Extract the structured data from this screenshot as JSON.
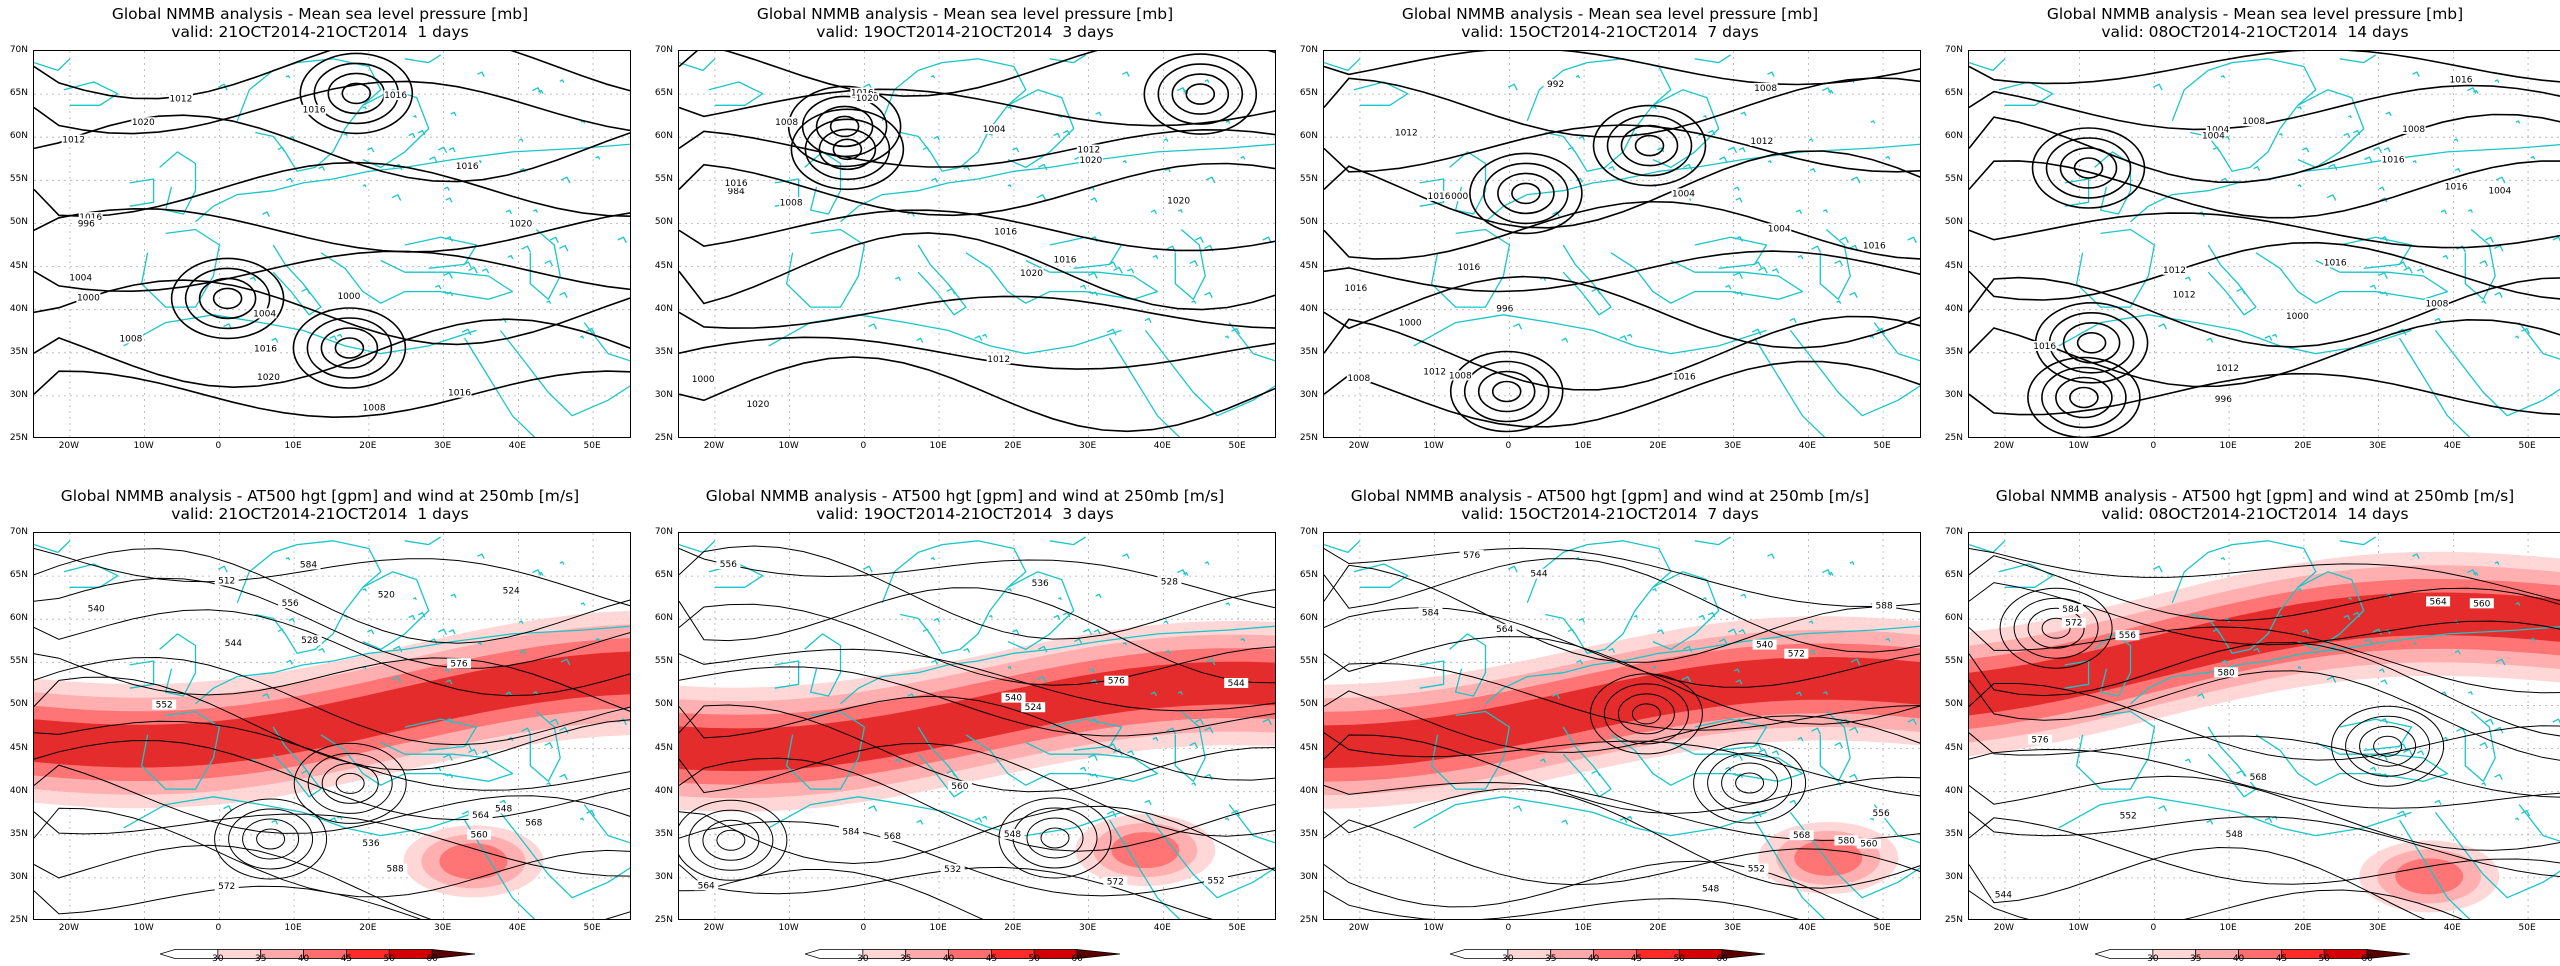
{
  "panels": [
    {
      "title": "Global NMMB analysis - Mean sea level pressure [mb]",
      "valid": "valid: 21OCT2014-21OCT2014  1 days",
      "kind": "mslp"
    },
    {
      "title": "Global NMMB analysis - Mean sea level pressure [mb]",
      "valid": "valid: 19OCT2014-21OCT2014  3 days",
      "kind": "mslp"
    },
    {
      "title": "Global NMMB analysis - Mean sea level pressure [mb]",
      "valid": "valid: 15OCT2014-21OCT2014  7 days",
      "kind": "mslp"
    },
    {
      "title": "Global NMMB analysis - Mean sea level pressure [mb]",
      "valid": "valid: 08OCT2014-21OCT2014  14 days",
      "kind": "mslp"
    },
    {
      "title": "Global NMMB analysis - AT500 hgt [gpm] and wind at 250mb [m/s]",
      "valid": "valid: 21OCT2014-21OCT2014  1 days",
      "kind": "z500"
    },
    {
      "title": "Global NMMB analysis - AT500 hgt [gpm] and wind at 250mb [m/s]",
      "valid": "valid: 19OCT2014-21OCT2014  3 days",
      "kind": "z500"
    },
    {
      "title": "Global NMMB analysis - AT500 hgt [gpm] and wind at 250mb [m/s]",
      "valid": "valid: 15OCT2014-21OCT2014  7 days",
      "kind": "z500"
    },
    {
      "title": "Global NMMB analysis - AT500 hgt [gpm] and wind at 250mb [m/s]",
      "valid": "valid: 08OCT2014-21OCT2014  14 days",
      "kind": "z500"
    }
  ],
  "axes": {
    "lat_labels": [
      "70N",
      "65N",
      "60N",
      "55N",
      "50N",
      "45N",
      "40N",
      "35N",
      "30N",
      "25N"
    ],
    "lon_labels": [
      "20W",
      "10W",
      "0",
      "10E",
      "20E",
      "30E",
      "40E",
      "50E"
    ]
  },
  "colorbar": {
    "labels": [
      "30",
      "35",
      "40",
      "45",
      "50",
      "60"
    ],
    "colors": [
      "#ffffff",
      "#ffd6d6",
      "#ffaaaa",
      "#ff6e6e",
      "#ff2a2a",
      "#d40000",
      "#5a0000"
    ]
  },
  "contour_labels": {
    "mslp": [
      [
        "1008",
        "1000",
        "1004",
        "1008",
        "1012",
        "1016",
        "1020",
        "1016",
        "1016",
        "1012",
        "1016",
        "1000",
        "1004",
        "996",
        "1020",
        "1016",
        "1016",
        "1020"
      ],
      [
        "984",
        "1000",
        "1008",
        "1012",
        "1016",
        "1020",
        "1020",
        "1020",
        "1012",
        "1016",
        "1004",
        "1008",
        "1016",
        "1016",
        "1020",
        "1020"
      ],
      [
        "1000",
        "1004",
        "1008",
        "1012",
        "1016",
        "1016",
        "1012",
        "1008",
        "992",
        "996",
        "1000",
        "1004",
        "1008",
        "1012",
        "1016",
        "1016",
        "1016"
      ],
      [
        "1008",
        "1004",
        "1000",
        "996",
        "1004",
        "1008",
        "1012",
        "1016",
        "1016",
        "1012",
        "1016",
        "1008",
        "1016",
        "1016",
        "1012",
        "1004"
      ]
    ],
    "z500": [
      [
        "512",
        "520",
        "524",
        "528",
        "536",
        "540",
        "544",
        "548",
        "552",
        "556",
        "560",
        "564",
        "568",
        "572",
        "576",
        "584",
        "588"
      ],
      [
        "524",
        "528",
        "532",
        "536",
        "540",
        "544",
        "548",
        "552",
        "556",
        "560",
        "564",
        "568",
        "572",
        "576",
        "584"
      ],
      [
        "540",
        "544",
        "548",
        "552",
        "556",
        "560",
        "564",
        "568",
        "572",
        "576",
        "580",
        "584",
        "588"
      ],
      [
        "544",
        "548",
        "552",
        "556",
        "560",
        "564",
        "568",
        "572",
        "576",
        "580",
        "584"
      ]
    ]
  }
}
